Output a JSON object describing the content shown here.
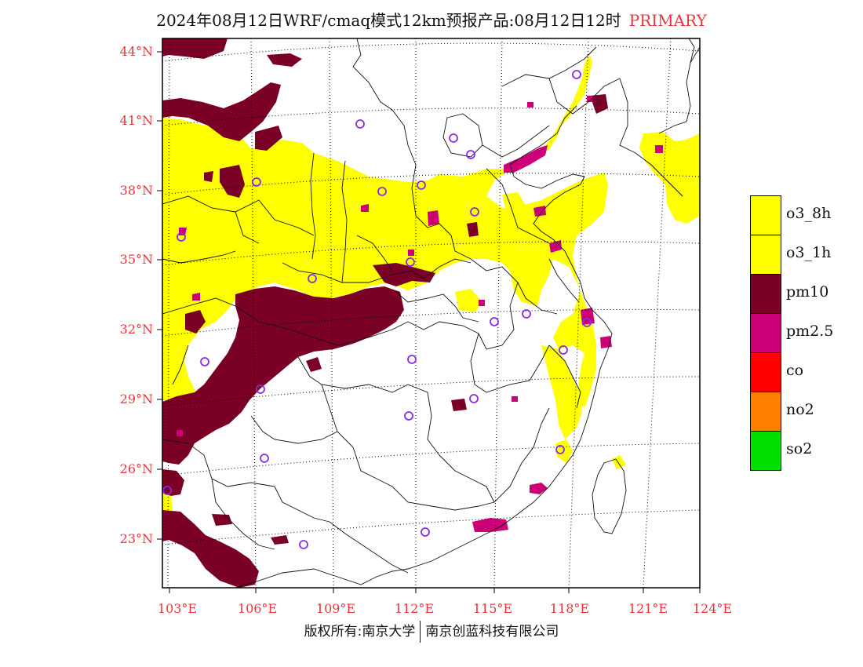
{
  "title": {
    "text": "2024年08月12日WRF/cmaq模式12km预报产品:08月12日12时",
    "tag": "PRIMARY"
  },
  "axes": {
    "lat_labels": [
      "44°N",
      "41°N",
      "38°N",
      "35°N",
      "32°N",
      "29°N",
      "26°N",
      "23°N"
    ],
    "lon_labels": [
      "103°E",
      "106°E",
      "109°E",
      "112°E",
      "115°E",
      "118°E",
      "121°E",
      "124°E"
    ],
    "label_color": "#e8343a"
  },
  "legend": {
    "items": [
      {
        "label": "o3_8h",
        "color": "#ffff00"
      },
      {
        "label": "o3_1h",
        "color": "#ffff00"
      },
      {
        "label": "pm10",
        "color": "#7a0026"
      },
      {
        "label": "pm2.5",
        "color": "#cc0077"
      },
      {
        "label": "co",
        "color": "#ff0000"
      },
      {
        "label": "no2",
        "color": "#ff7f00"
      },
      {
        "label": "so2",
        "color": "#00e000"
      }
    ]
  },
  "footer": {
    "left": "版权所有:南京大学",
    "right": "南京创蓝科技有限公司"
  },
  "city_marker_color": "#8a2be2"
}
